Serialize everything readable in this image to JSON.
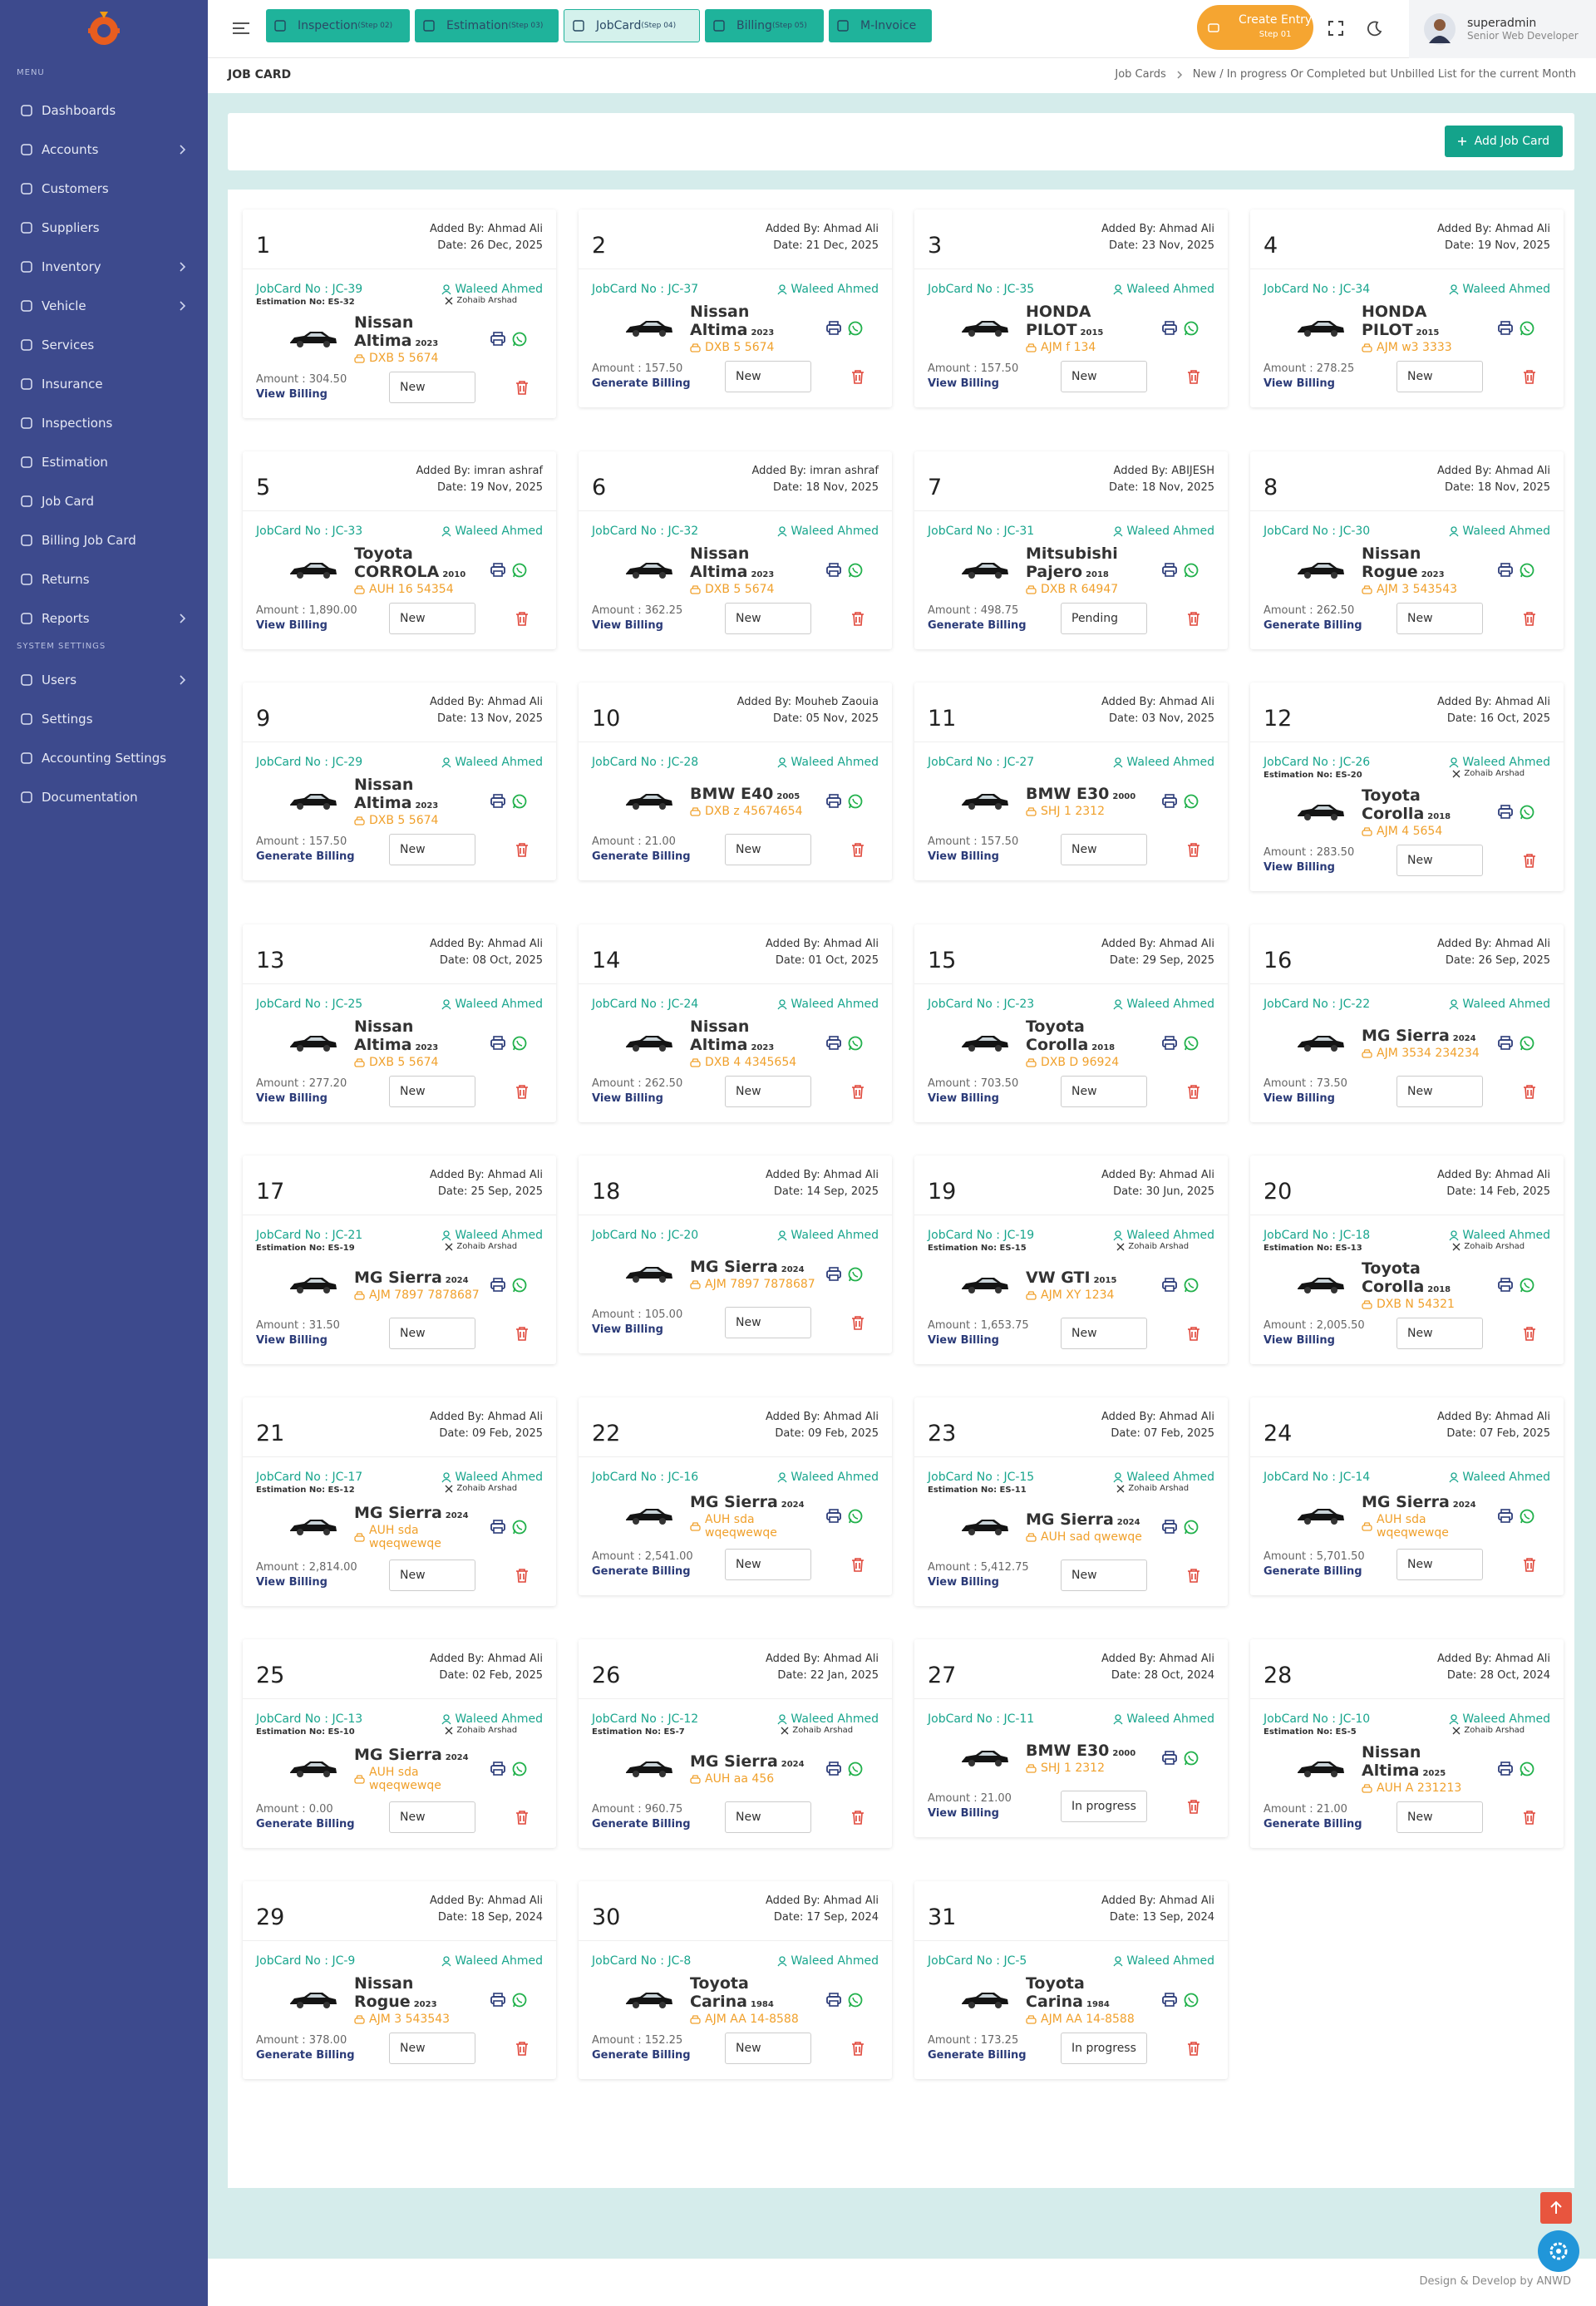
{
  "sidebar": {
    "menu_heading": "MENU",
    "items": [
      {
        "label": "Dashboards"
      },
      {
        "label": "Accounts",
        "submenu": true
      },
      {
        "label": "Customers"
      },
      {
        "label": "Suppliers"
      },
      {
        "label": "Inventory",
        "submenu": true
      },
      {
        "label": "Vehicle",
        "submenu": true
      },
      {
        "label": "Services"
      },
      {
        "label": "Insurance"
      },
      {
        "label": "Inspections"
      },
      {
        "label": "Estimation"
      },
      {
        "label": "Job Card"
      },
      {
        "label": "Billing Job Card"
      },
      {
        "label": "Returns"
      },
      {
        "label": "Reports",
        "submenu": true
      }
    ],
    "settings_heading": "SYSTEM SETTINGS",
    "settings_items": [
      {
        "label": "Users",
        "submenu": true
      },
      {
        "label": "Settings"
      },
      {
        "label": "Accounting Settings"
      },
      {
        "label": "Documentation"
      }
    ]
  },
  "topbar": {
    "steps": [
      {
        "label": "Inspection",
        "step": "(Step 02)"
      },
      {
        "label": "Estimation",
        "step": "(Step 03)"
      },
      {
        "label": "JobCard",
        "step": "(Step 04)",
        "active": true
      },
      {
        "label": "Billing",
        "step": "(Step 05)"
      },
      {
        "label": "M-Invoice"
      }
    ],
    "create_entry": {
      "label": "Create Entry",
      "step": "Step 01"
    },
    "user": {
      "name": "superadmin",
      "role": "Senior Web Developer"
    }
  },
  "page_title": "JOB CARD",
  "breadcrumb": [
    "Job Cards",
    "New / In progress Or Completed but Unbilled List for the current Month"
  ],
  "add_button": "Add Job Card",
  "cards": [
    {
      "number": 1,
      "added_by": "Added By: Ahmad Ali",
      "date": "Date: 26 Dec, 2025",
      "jobcard_no": "JobCard No : JC-39",
      "estimation_no": "Estimation No: ES-32",
      "technician": "Waleed Ahmed",
      "assistant": "Zohaib Arshad",
      "car": "Nissan Altima",
      "year": 2023,
      "plate": "DXB 5 5674",
      "amount": "Amount : 304.50",
      "billing": "View Billing",
      "status": "New"
    },
    {
      "number": 2,
      "added_by": "Added By: Ahmad Ali",
      "date": "Date: 21 Dec, 2025",
      "jobcard_no": "JobCard No : JC-37",
      "technician": "Waleed Ahmed",
      "car": "Nissan Altima",
      "year": 2023,
      "plate": "DXB 5 5674",
      "amount": "Amount : 157.50",
      "billing": "Generate Billing",
      "status": "New"
    },
    {
      "number": 3,
      "added_by": "Added By: Ahmad Ali",
      "date": "Date: 23 Nov, 2025",
      "jobcard_no": "JobCard No : JC-35",
      "technician": "Waleed Ahmed",
      "car": "HONDA PILOT",
      "year": 2015,
      "plate": "AJM f 134",
      "amount": "Amount : 157.50",
      "billing": "View Billing",
      "status": "New"
    },
    {
      "number": 4,
      "added_by": "Added By: Ahmad Ali",
      "date": "Date: 19 Nov, 2025",
      "jobcard_no": "JobCard No : JC-34",
      "technician": "Waleed Ahmed",
      "car": "HONDA PILOT",
      "year": 2015,
      "plate": "AJM w3 3333",
      "amount": "Amount : 278.25",
      "billing": "View Billing",
      "status": "New"
    },
    {
      "number": 5,
      "added_by": "Added By: imran ashraf",
      "date": "Date: 19 Nov, 2025",
      "jobcard_no": "JobCard No : JC-33",
      "technician": "Waleed Ahmed",
      "car": "Toyota CORROLA",
      "year": 2010,
      "plate": "AUH 16 54354",
      "amount": "Amount : 1,890.00",
      "billing": "View Billing",
      "status": "New"
    },
    {
      "number": 6,
      "added_by": "Added By: imran ashraf",
      "date": "Date: 18 Nov, 2025",
      "jobcard_no": "JobCard No : JC-32",
      "technician": "Waleed Ahmed",
      "car": "Nissan Altima",
      "year": 2023,
      "plate": "DXB 5 5674",
      "amount": "Amount : 362.25",
      "billing": "View Billing",
      "status": "New"
    },
    {
      "number": 7,
      "added_by": "Added By: ABIJESH",
      "date": "Date: 18 Nov, 2025",
      "jobcard_no": "JobCard No : JC-31",
      "technician": "Waleed Ahmed",
      "car": "Mitsubishi Pajero",
      "year": 2018,
      "plate": "DXB R 64947",
      "amount": "Amount : 498.75",
      "billing": "Generate Billing",
      "status": "Pending"
    },
    {
      "number": 8,
      "added_by": "Added By: Ahmad Ali",
      "date": "Date: 18 Nov, 2025",
      "jobcard_no": "JobCard No : JC-30",
      "technician": "Waleed Ahmed",
      "car": "Nissan Rogue",
      "year": 2023,
      "plate": "AJM 3 543543",
      "amount": "Amount : 262.50",
      "billing": "Generate Billing",
      "status": "New"
    },
    {
      "number": 9,
      "added_by": "Added By: Ahmad Ali",
      "date": "Date: 13 Nov, 2025",
      "jobcard_no": "JobCard No : JC-29",
      "technician": "Waleed Ahmed",
      "car": "Nissan Altima",
      "year": 2023,
      "plate": "DXB 5 5674",
      "amount": "Amount : 157.50",
      "billing": "Generate Billing",
      "status": "New"
    },
    {
      "number": 10,
      "added_by": "Added By: Mouheb Zaouia",
      "date": "Date: 05 Nov, 2025",
      "jobcard_no": "JobCard No : JC-28",
      "technician": "Waleed Ahmed",
      "car": "BMW E40",
      "year": 2005,
      "plate": "DXB z 45674654",
      "amount": "Amount : 21.00",
      "billing": "Generate Billing",
      "status": "New"
    },
    {
      "number": 11,
      "added_by": "Added By: Ahmad Ali",
      "date": "Date: 03 Nov, 2025",
      "jobcard_no": "JobCard No : JC-27",
      "technician": "Waleed Ahmed",
      "car": "BMW E30",
      "year": 2000,
      "plate": "SHJ 1 2312",
      "amount": "Amount : 157.50",
      "billing": "View Billing",
      "status": "New"
    },
    {
      "number": 12,
      "added_by": "Added By: Ahmad Ali",
      "date": "Date: 16 Oct, 2025",
      "jobcard_no": "JobCard No : JC-26",
      "estimation_no": "Estimation No: ES-20",
      "technician": "Waleed Ahmed",
      "assistant": "Zohaib Arshad",
      "car": "Toyota Corolla",
      "year": 2018,
      "plate": "AJM 4 5654",
      "amount": "Amount : 283.50",
      "billing": "View Billing",
      "status": "New"
    },
    {
      "number": 13,
      "added_by": "Added By: Ahmad Ali",
      "date": "Date: 08 Oct, 2025",
      "jobcard_no": "JobCard No : JC-25",
      "technician": "Waleed Ahmed",
      "car": "Nissan Altima",
      "year": 2023,
      "plate": "DXB 5 5674",
      "amount": "Amount : 277.20",
      "billing": "View Billing",
      "status": "New"
    },
    {
      "number": 14,
      "added_by": "Added By: Ahmad Ali",
      "date": "Date: 01 Oct, 2025",
      "jobcard_no": "JobCard No : JC-24",
      "technician": "Waleed Ahmed",
      "car": "Nissan Altima",
      "year": 2023,
      "plate": "DXB 4 4345654",
      "amount": "Amount : 262.50",
      "billing": "View Billing",
      "status": "New"
    },
    {
      "number": 15,
      "added_by": "Added By: Ahmad Ali",
      "date": "Date: 29 Sep, 2025",
      "jobcard_no": "JobCard No : JC-23",
      "technician": "Waleed Ahmed",
      "car": "Toyota Corolla",
      "year": 2018,
      "plate": "DXB D 96924",
      "amount": "Amount : 703.50",
      "billing": "View Billing",
      "status": "New"
    },
    {
      "number": 16,
      "added_by": "Added By: Ahmad Ali",
      "date": "Date: 26 Sep, 2025",
      "jobcard_no": "JobCard No : JC-22",
      "technician": "Waleed Ahmed",
      "car": "MG Sierra",
      "year": 2024,
      "plate": "AJM 3534 234234",
      "amount": "Amount : 73.50",
      "billing": "View Billing",
      "status": "New"
    },
    {
      "number": 17,
      "added_by": "Added By: Ahmad Ali",
      "date": "Date: 25 Sep, 2025",
      "jobcard_no": "JobCard No : JC-21",
      "estimation_no": "Estimation No: ES-19",
      "technician": "Waleed Ahmed",
      "assistant": "Zohaib Arshad",
      "car": "MG Sierra",
      "year": 2024,
      "plate": "AJM 7897 7878687",
      "amount": "Amount : 31.50",
      "billing": "View Billing",
      "status": "New"
    },
    {
      "number": 18,
      "added_by": "Added By: Ahmad Ali",
      "date": "Date: 14 Sep, 2025",
      "jobcard_no": "JobCard No : JC-20",
      "technician": "Waleed Ahmed",
      "car": "MG Sierra",
      "year": 2024,
      "plate": "AJM 7897 7878687",
      "amount": "Amount : 105.00",
      "billing": "View Billing",
      "status": "New"
    },
    {
      "number": 19,
      "added_by": "Added By: Ahmad Ali",
      "date": "Date: 30 Jun, 2025",
      "jobcard_no": "JobCard No : JC-19",
      "estimation_no": "Estimation No: ES-15",
      "technician": "Waleed Ahmed",
      "assistant": "Zohaib Arshad",
      "car": "VW GTI",
      "year": 2015,
      "plate": "AJM XY 1234",
      "amount": "Amount : 1,653.75",
      "billing": "View Billing",
      "status": "New"
    },
    {
      "number": 20,
      "added_by": "Added By: Ahmad Ali",
      "date": "Date: 14 Feb, 2025",
      "jobcard_no": "JobCard No : JC-18",
      "estimation_no": "Estimation No: ES-13",
      "technician": "Waleed Ahmed",
      "assistant": "Zohaib Arshad",
      "car": "Toyota Corolla",
      "year": 2018,
      "plate": "DXB N 54321",
      "amount": "Amount : 2,005.50",
      "billing": "View Billing",
      "status": "New"
    },
    {
      "number": 21,
      "added_by": "Added By: Ahmad Ali",
      "date": "Date: 09 Feb, 2025",
      "jobcard_no": "JobCard No : JC-17",
      "estimation_no": "Estimation No: ES-12",
      "technician": "Waleed Ahmed",
      "assistant": "Zohaib Arshad",
      "car": "MG Sierra",
      "year": 2024,
      "plate": "AUH sda wqeqwewqe",
      "amount": "Amount : 2,814.00",
      "billing": "View Billing",
      "status": "New"
    },
    {
      "number": 22,
      "added_by": "Added By: Ahmad Ali",
      "date": "Date: 09 Feb, 2025",
      "jobcard_no": "JobCard No : JC-16",
      "technician": "Waleed Ahmed",
      "car": "MG Sierra",
      "year": 2024,
      "plate": "AUH sda wqeqwewqe",
      "amount": "Amount : 2,541.00",
      "billing": "Generate Billing",
      "status": "New"
    },
    {
      "number": 23,
      "added_by": "Added By: Ahmad Ali",
      "date": "Date: 07 Feb, 2025",
      "jobcard_no": "JobCard No : JC-15",
      "estimation_no": "Estimation No: ES-11",
      "technician": "Waleed Ahmed",
      "assistant": "Zohaib Arshad",
      "car": "MG Sierra",
      "year": 2024,
      "plate": "AUH sad qwewqe",
      "amount": "Amount : 5,412.75",
      "billing": "View Billing",
      "status": "New"
    },
    {
      "number": 24,
      "added_by": "Added By: Ahmad Ali",
      "date": "Date: 07 Feb, 2025",
      "jobcard_no": "JobCard No : JC-14",
      "technician": "Waleed Ahmed",
      "car": "MG Sierra",
      "year": 2024,
      "plate": "AUH sda wqeqwewqe",
      "amount": "Amount : 5,701.50",
      "billing": "Generate Billing",
      "status": "New"
    },
    {
      "number": 25,
      "added_by": "Added By: Ahmad Ali",
      "date": "Date: 02 Feb, 2025",
      "jobcard_no": "JobCard No : JC-13",
      "estimation_no": "Estimation No: ES-10",
      "technician": "Waleed Ahmed",
      "assistant": "Zohaib Arshad",
      "car": "MG Sierra",
      "year": 2024,
      "plate": "AUH sda wqeqwewqe",
      "amount": "Amount : 0.00",
      "billing": "Generate Billing",
      "status": "New"
    },
    {
      "number": 26,
      "added_by": "Added By: Ahmad Ali",
      "date": "Date: 22 Jan, 2025",
      "jobcard_no": "JobCard No : JC-12",
      "estimation_no": "Estimation No: ES-7",
      "technician": "Waleed Ahmed",
      "assistant": "Zohaib Arshad",
      "car": "MG Sierra",
      "year": 2024,
      "plate": "AUH aa 456",
      "amount": "Amount : 960.75",
      "billing": "Generate Billing",
      "status": "New"
    },
    {
      "number": 27,
      "added_by": "Added By: Ahmad Ali",
      "date": "Date: 28 Oct, 2024",
      "jobcard_no": "JobCard No : JC-11",
      "technician": "Waleed Ahmed",
      "car": "BMW E30",
      "year": 2000,
      "plate": "SHJ 1 2312",
      "amount": "Amount : 21.00",
      "billing": "View Billing",
      "status": "In progress"
    },
    {
      "number": 28,
      "added_by": "Added By: Ahmad Ali",
      "date": "Date: 28 Oct, 2024",
      "jobcard_no": "JobCard No : JC-10",
      "estimation_no": "Estimation No: ES-5",
      "technician": "Waleed Ahmed",
      "assistant": "Zohaib Arshad",
      "car": "Nissan Altima",
      "year": 2025,
      "plate": "AUH A 231213",
      "amount": "Amount : 21.00",
      "billing": "Generate Billing",
      "status": "New"
    },
    {
      "number": 29,
      "added_by": "Added By: Ahmad Ali",
      "date": "Date: 18 Sep, 2024",
      "jobcard_no": "JobCard No : JC-9",
      "technician": "Waleed Ahmed",
      "car": "Nissan Rogue",
      "year": 2023,
      "plate": "AJM 3 543543",
      "amount": "Amount : 378.00",
      "billing": "Generate Billing",
      "status": "New"
    },
    {
      "number": 30,
      "added_by": "Added By: Ahmad Ali",
      "date": "Date: 17 Sep, 2024",
      "jobcard_no": "JobCard No : JC-8",
      "technician": "Waleed Ahmed",
      "car": "Toyota Carina",
      "year": 1984,
      "plate": "AJM AA 14-8588",
      "amount": "Amount : 152.25",
      "billing": "Generate Billing",
      "status": "New"
    },
    {
      "number": 31,
      "added_by": "Added By: Ahmad Ali",
      "date": "Date: 13 Sep, 2024",
      "jobcard_no": "JobCard No : JC-5",
      "technician": "Waleed Ahmed",
      "car": "Toyota Carina",
      "year": 1984,
      "plate": "AJM AA 14-8588",
      "amount": "Amount : 173.25",
      "billing": "Generate Billing",
      "status": "In progress"
    }
  ],
  "footer": "Design & Develop by ANWD"
}
